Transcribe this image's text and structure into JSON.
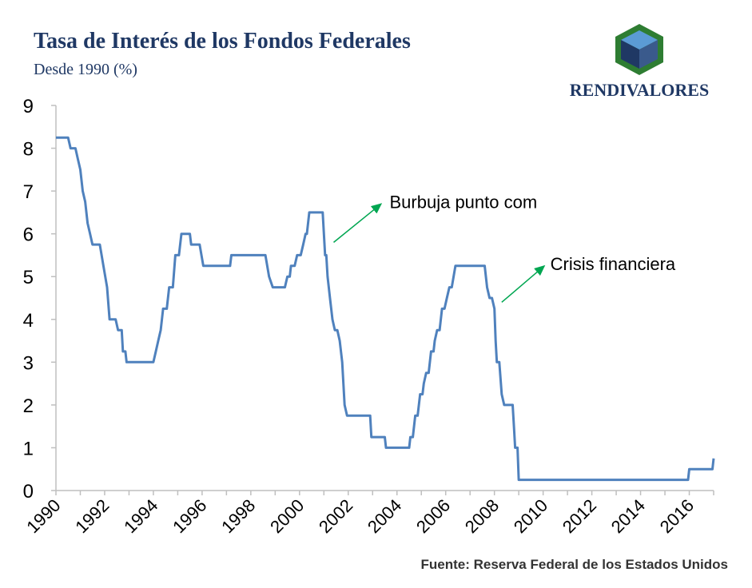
{
  "header": {
    "title": "Tasa de Interés de los Fondos Federales",
    "subtitle": "Desde 1990 (%)"
  },
  "brand": {
    "name": "RENDIVALORES",
    "color": "#1f3864",
    "accent": "#2e7d32"
  },
  "footer": {
    "source": "Fuente: Reserva Federal de los Estados Unidos"
  },
  "colors": {
    "line": "#4f81bd",
    "axis": "#bfbfbf",
    "arrow": "#00a651",
    "text": "#000000"
  },
  "chart_data": {
    "type": "line",
    "title": "Tasa de Interés de los Fondos Federales",
    "xlabel": "",
    "ylabel": "",
    "xlim": [
      1990,
      2017
    ],
    "ylim": [
      0,
      9
    ],
    "grid": false,
    "x_ticks": [
      "1990",
      "1992",
      "1994",
      "1996",
      "1998",
      "2000",
      "2002",
      "2004",
      "2006",
      "2008",
      "2010",
      "2012",
      "2014",
      "2016"
    ],
    "y_ticks": [
      "0",
      "1",
      "2",
      "3",
      "4",
      "5",
      "6",
      "7",
      "8",
      "9"
    ],
    "series": [
      {
        "points": [
          [
            1990.0,
            8.25
          ],
          [
            1990.5,
            8.25
          ],
          [
            1990.6,
            8.0
          ],
          [
            1990.8,
            8.0
          ],
          [
            1990.9,
            7.75
          ],
          [
            1991.0,
            7.5
          ],
          [
            1991.1,
            7.0
          ],
          [
            1991.2,
            6.75
          ],
          [
            1991.3,
            6.25
          ],
          [
            1991.4,
            6.0
          ],
          [
            1991.5,
            5.75
          ],
          [
            1991.8,
            5.75
          ],
          [
            1991.95,
            5.25
          ],
          [
            1992.1,
            4.75
          ],
          [
            1992.2,
            4.0
          ],
          [
            1992.45,
            4.0
          ],
          [
            1992.55,
            3.75
          ],
          [
            1992.7,
            3.75
          ],
          [
            1992.75,
            3.25
          ],
          [
            1992.85,
            3.25
          ],
          [
            1992.9,
            3.0
          ],
          [
            1994.0,
            3.0
          ],
          [
            1994.1,
            3.25
          ],
          [
            1994.2,
            3.5
          ],
          [
            1994.3,
            3.75
          ],
          [
            1994.4,
            4.25
          ],
          [
            1994.55,
            4.25
          ],
          [
            1994.65,
            4.75
          ],
          [
            1994.8,
            4.75
          ],
          [
            1994.9,
            5.5
          ],
          [
            1995.05,
            5.5
          ],
          [
            1995.15,
            6.0
          ],
          [
            1995.5,
            6.0
          ],
          [
            1995.55,
            5.75
          ],
          [
            1995.9,
            5.75
          ],
          [
            1996.05,
            5.25
          ],
          [
            1997.15,
            5.25
          ],
          [
            1997.2,
            5.5
          ],
          [
            1998.6,
            5.5
          ],
          [
            1998.75,
            5.0
          ],
          [
            1998.9,
            4.75
          ],
          [
            1999.4,
            4.75
          ],
          [
            1999.5,
            5.0
          ],
          [
            1999.6,
            5.0
          ],
          [
            1999.65,
            5.25
          ],
          [
            1999.8,
            5.25
          ],
          [
            1999.9,
            5.5
          ],
          [
            2000.05,
            5.5
          ],
          [
            2000.15,
            5.75
          ],
          [
            2000.25,
            6.0
          ],
          [
            2000.3,
            6.0
          ],
          [
            2000.4,
            6.5
          ],
          [
            2000.95,
            6.5
          ],
          [
            2001.05,
            5.5
          ],
          [
            2001.1,
            5.5
          ],
          [
            2001.15,
            5.0
          ],
          [
            2001.25,
            4.5
          ],
          [
            2001.35,
            4.0
          ],
          [
            2001.45,
            3.75
          ],
          [
            2001.55,
            3.75
          ],
          [
            2001.65,
            3.5
          ],
          [
            2001.75,
            3.0
          ],
          [
            2001.8,
            2.5
          ],
          [
            2001.85,
            2.0
          ],
          [
            2001.95,
            1.75
          ],
          [
            2002.9,
            1.75
          ],
          [
            2002.95,
            1.25
          ],
          [
            2003.5,
            1.25
          ],
          [
            2003.55,
            1.0
          ],
          [
            2004.5,
            1.0
          ],
          [
            2004.55,
            1.25
          ],
          [
            2004.65,
            1.25
          ],
          [
            2004.7,
            1.5
          ],
          [
            2004.75,
            1.75
          ],
          [
            2004.85,
            1.75
          ],
          [
            2004.95,
            2.25
          ],
          [
            2005.05,
            2.25
          ],
          [
            2005.1,
            2.5
          ],
          [
            2005.2,
            2.75
          ],
          [
            2005.3,
            2.75
          ],
          [
            2005.4,
            3.25
          ],
          [
            2005.5,
            3.25
          ],
          [
            2005.55,
            3.5
          ],
          [
            2005.65,
            3.75
          ],
          [
            2005.75,
            3.75
          ],
          [
            2005.85,
            4.25
          ],
          [
            2005.95,
            4.25
          ],
          [
            2006.05,
            4.5
          ],
          [
            2006.15,
            4.75
          ],
          [
            2006.25,
            4.75
          ],
          [
            2006.4,
            5.25
          ],
          [
            2007.6,
            5.25
          ],
          [
            2007.7,
            4.75
          ],
          [
            2007.8,
            4.5
          ],
          [
            2007.9,
            4.5
          ],
          [
            2008.0,
            4.25
          ],
          [
            2008.05,
            3.5
          ],
          [
            2008.1,
            3.0
          ],
          [
            2008.2,
            3.0
          ],
          [
            2008.3,
            2.25
          ],
          [
            2008.4,
            2.0
          ],
          [
            2008.75,
            2.0
          ],
          [
            2008.8,
            1.5
          ],
          [
            2008.85,
            1.0
          ],
          [
            2008.95,
            1.0
          ],
          [
            2009.0,
            0.25
          ],
          [
            2015.95,
            0.25
          ],
          [
            2016.0,
            0.5
          ],
          [
            2016.95,
            0.5
          ],
          [
            2017.0,
            0.75
          ]
        ]
      }
    ],
    "annotations": [
      {
        "text": "Burbuja punto com",
        "x": 2003.5,
        "y": 6.75
      },
      {
        "text": "Crisis financiera",
        "x": 2010.1,
        "y": 5.3
      }
    ]
  }
}
